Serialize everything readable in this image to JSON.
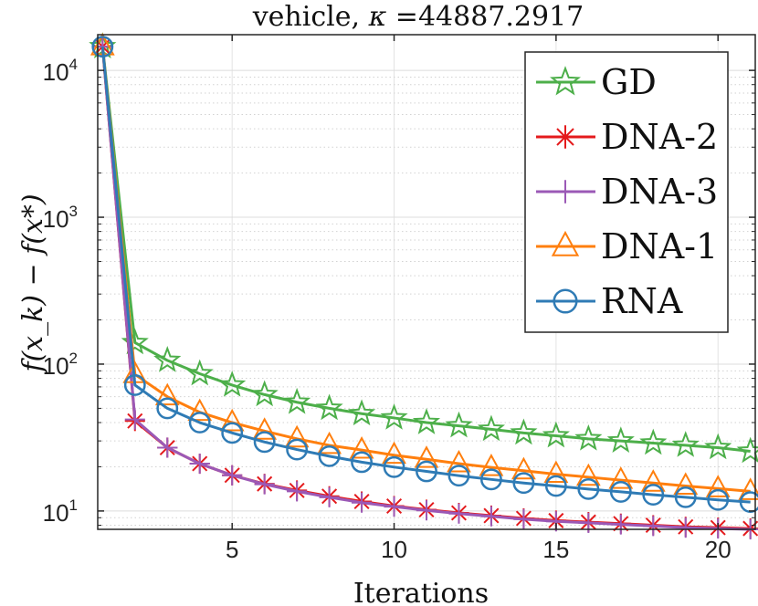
{
  "chart_data": {
    "type": "line",
    "title_prefix": "vehicle, ",
    "title_kappa": "κ",
    "title_value": " =44887.2917",
    "xlabel": "Iterations",
    "ylabel": "f(x_k) − f(x*)",
    "xscale": "linear",
    "yscale": "log",
    "xlim": [
      0.85,
      21.15
    ],
    "ylim": [
      7.5,
      17500
    ],
    "xticks": [
      5,
      10,
      15,
      20
    ],
    "xtick_labels": [
      "5",
      "10",
      "15",
      "20"
    ],
    "yticks": [
      10,
      100,
      1000,
      10000
    ],
    "ytick_base": "10",
    "ytick_exponents": [
      "1",
      "2",
      "3",
      "4"
    ],
    "grid": true,
    "legend_location": "top-right",
    "x": [
      1,
      2,
      3,
      4,
      5,
      6,
      7,
      8,
      9,
      10,
      11,
      12,
      13,
      14,
      15,
      16,
      17,
      18,
      19,
      20,
      21
    ],
    "series": [
      {
        "name": "GD",
        "color": "#4daf4a",
        "marker": "star",
        "values": [
          14500,
          140,
          106,
          86,
          72,
          62,
          55,
          50,
          46,
          43,
          40,
          38,
          36,
          34,
          32.5,
          31,
          30,
          29,
          28,
          27,
          25.5
        ]
      },
      {
        "name": "DNA-2",
        "color": "#e41a1c",
        "marker": "asterisk",
        "values": [
          14500,
          41,
          27,
          21,
          17.5,
          15.3,
          13.8,
          12.6,
          11.6,
          10.8,
          10.2,
          9.7,
          9.3,
          8.9,
          8.6,
          8.4,
          8.2,
          8.0,
          7.8,
          7.7,
          7.6
        ]
      },
      {
        "name": "DNA-3",
        "color": "#9b59b6",
        "marker": "plus",
        "values": [
          14500,
          42,
          27,
          21,
          17.5,
          15.2,
          13.6,
          12.4,
          11.4,
          10.7,
          10.1,
          9.6,
          9.2,
          8.8,
          8.5,
          8.3,
          8.1,
          7.9,
          7.7,
          7.6,
          7.5
        ]
      },
      {
        "name": "DNA-1",
        "color": "#ff7f0e",
        "marker": "triangle",
        "values": [
          14500,
          85,
          60,
          47,
          40,
          35,
          31,
          28,
          26,
          24,
          22.5,
          21,
          19.8,
          18.8,
          17.8,
          17,
          16.2,
          15.5,
          14.8,
          14.2,
          13.6
        ]
      },
      {
        "name": "RNA",
        "color": "#2f7bb5",
        "marker": "circle",
        "values": [
          14500,
          72,
          50,
          40,
          34,
          29.5,
          26.2,
          23.6,
          21.5,
          19.9,
          18.6,
          17.4,
          16.4,
          15.5,
          14.8,
          14.1,
          13.5,
          12.9,
          12.4,
          11.9,
          11.5
        ]
      }
    ]
  }
}
